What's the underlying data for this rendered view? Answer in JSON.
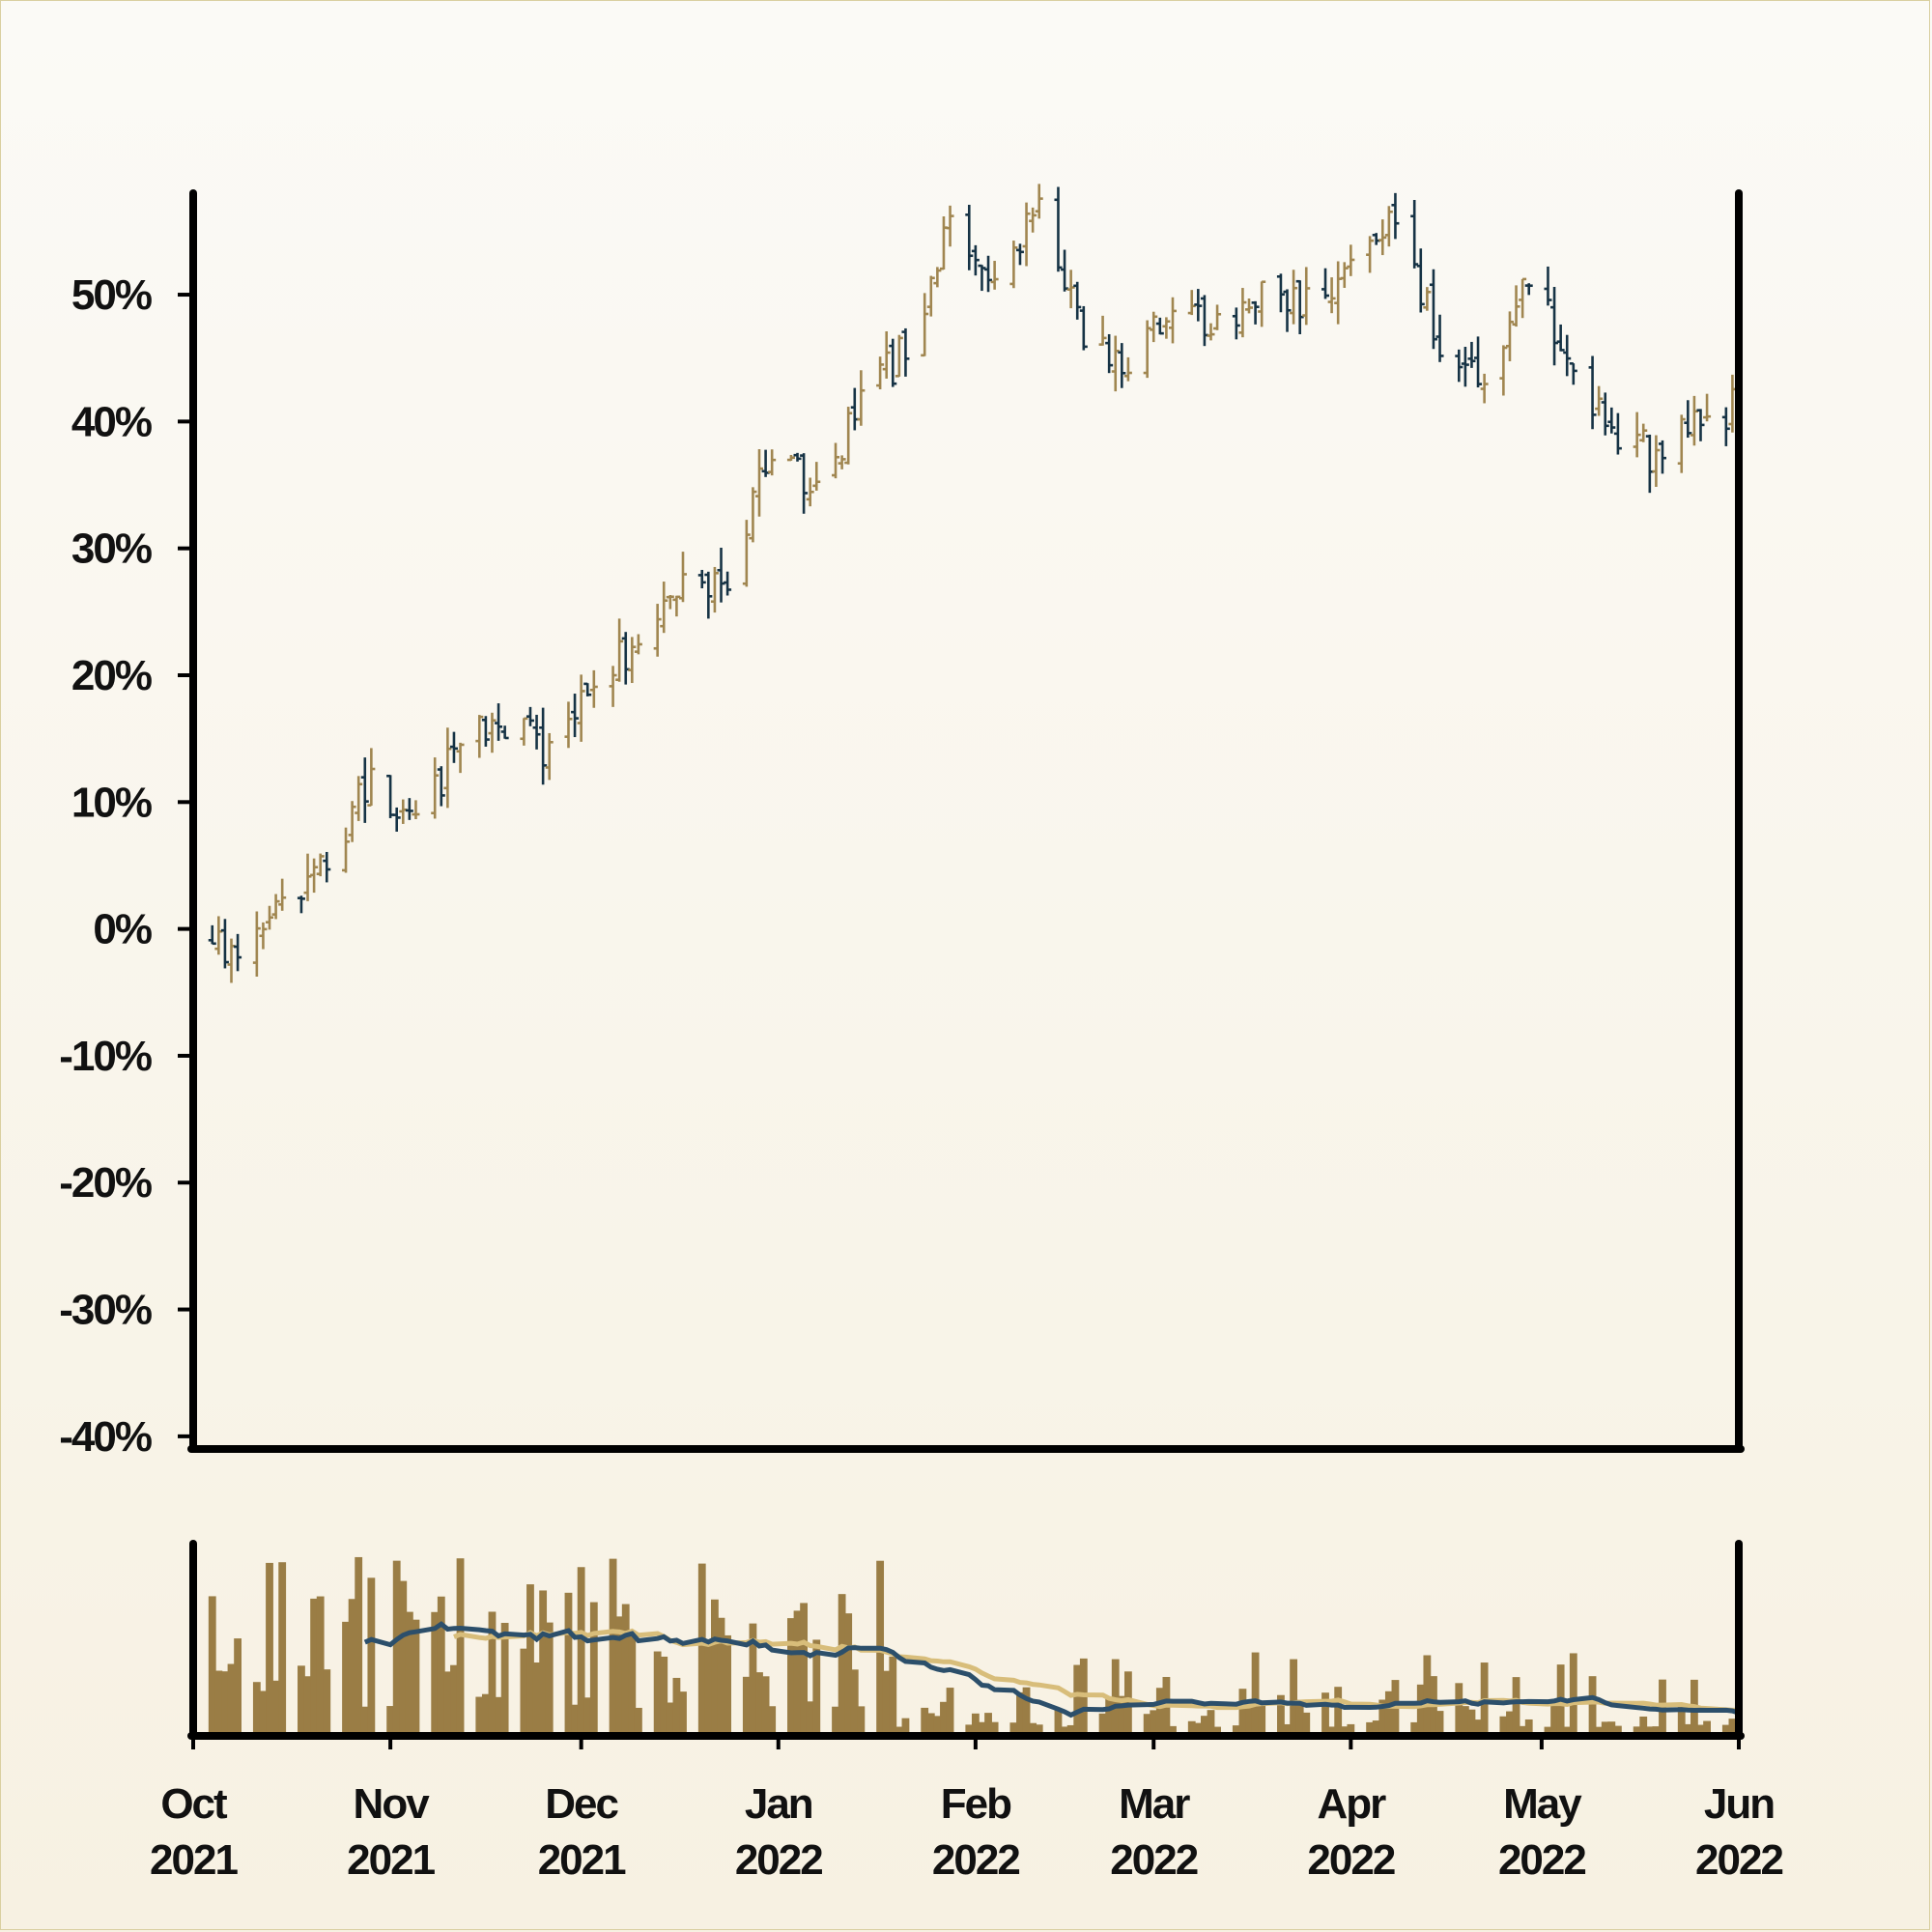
{
  "chart_data": {
    "type": "ohlc",
    "title": "",
    "xlabel": "",
    "ylabel": "",
    "ylim": [
      -41,
      58
    ],
    "y_ticks": [
      "-40%",
      "-30%",
      "-20%",
      "-10%",
      "0%",
      "10%",
      "20%",
      "30%",
      "40%",
      "50%"
    ],
    "y_tick_values": [
      -40,
      -30,
      -20,
      -10,
      0,
      10,
      20,
      30,
      40,
      50
    ],
    "x_ticks": [
      {
        "month": "Oct",
        "year": "2021",
        "date": "2021-10-01"
      },
      {
        "month": "Nov",
        "year": "2021",
        "date": "2021-11-01"
      },
      {
        "month": "Dec",
        "year": "2021",
        "date": "2021-12-01"
      },
      {
        "month": "Jan",
        "year": "2022",
        "date": "2022-01-01"
      },
      {
        "month": "Feb",
        "year": "2022",
        "date": "2022-02-01"
      },
      {
        "month": "Mar",
        "year": "2022",
        "date": "2022-03-01"
      },
      {
        "month": "Apr",
        "year": "2022",
        "date": "2022-04-01"
      },
      {
        "month": "May",
        "year": "2022",
        "date": "2022-05-01"
      },
      {
        "month": "Jun",
        "year": "2022",
        "date": "2022-06-01"
      }
    ],
    "x_range": [
      "2021-10-01",
      "2022-06-01"
    ],
    "close_path": [
      [
        "2021-10-01",
        -1
      ],
      [
        "2021-10-08",
        -2
      ],
      [
        "2021-10-15",
        2
      ],
      [
        "2021-10-22",
        5
      ],
      [
        "2021-10-29",
        12
      ],
      [
        "2021-11-05",
        8
      ],
      [
        "2021-11-12",
        15
      ],
      [
        "2021-11-19",
        16
      ],
      [
        "2021-11-26",
        14
      ],
      [
        "2021-12-03",
        19
      ],
      [
        "2021-12-10",
        23
      ],
      [
        "2021-12-17",
        27
      ],
      [
        "2021-12-24",
        27
      ],
      [
        "2021-12-31",
        38
      ],
      [
        "2022-01-07",
        35
      ],
      [
        "2022-01-14",
        41
      ],
      [
        "2022-01-21",
        46
      ],
      [
        "2022-01-28",
        55
      ],
      [
        "2022-02-04",
        52
      ],
      [
        "2022-02-11",
        56
      ],
      [
        "2022-02-18",
        47
      ],
      [
        "2022-02-25",
        44
      ],
      [
        "2022-03-04",
        50
      ],
      [
        "2022-03-11",
        47
      ],
      [
        "2022-03-18",
        50
      ],
      [
        "2022-03-25",
        49
      ],
      [
        "2022-04-01",
        53
      ],
      [
        "2022-04-08",
        57
      ],
      [
        "2022-04-15",
        46
      ],
      [
        "2022-04-22",
        43
      ],
      [
        "2022-04-29",
        52
      ],
      [
        "2022-05-06",
        44
      ],
      [
        "2022-05-13",
        39
      ],
      [
        "2022-05-20",
        37
      ],
      [
        "2022-05-27",
        41
      ],
      [
        "2022-06-01",
        41
      ]
    ],
    "volume_style": {
      "bar_color": "#9a7d45",
      "ma_fast_color": "#2c4f6b",
      "ma_slow_color": "#d8bd7a"
    },
    "colors": {
      "up": "#a08650",
      "down": "#163345",
      "axis": "#000000"
    }
  }
}
